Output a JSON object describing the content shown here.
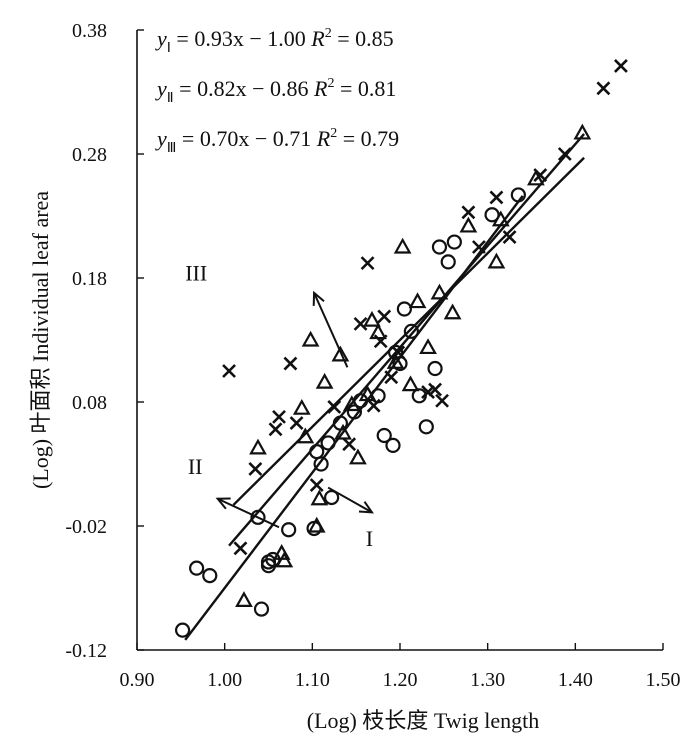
{
  "chart_data": {
    "type": "scatter",
    "title": "",
    "xlabel": "(Log) 枝长度 Twig length",
    "ylabel": "(Log) 叶面积 Individual leaf area",
    "xlim": [
      0.9,
      1.5
    ],
    "ylim": [
      -0.12,
      0.38
    ],
    "x_ticks": [
      "0.90",
      "1.00",
      "1.10",
      "1.20",
      "1.30",
      "1.40",
      "1.50"
    ],
    "y_ticks": [
      "-0.12",
      "-0.02",
      "0.08",
      "0.18",
      "0.28",
      "0.38"
    ],
    "grid": false,
    "equations": [
      {
        "y": "y",
        "sub": "Ⅰ",
        "rhs": " = 0.93x − 1.00",
        "r": "R",
        "sup": "2",
        "rval": " = 0.85"
      },
      {
        "y": "y",
        "sub": "Ⅱ",
        "rhs": " = 0.82x − 0.86",
        "r": "R",
        "sup": "2",
        "rval": " = 0.81"
      },
      {
        "y": "y",
        "sub": "Ⅲ",
        "rhs": " = 0.70x − 0.71",
        "r": "R",
        "sup": "2",
        "rval": " = 0.79"
      }
    ],
    "series": [
      {
        "name": "I",
        "marker": "circle",
        "fit": {
          "slope": 0.93,
          "intercept": -1.0,
          "x_range": [
            0.955,
            1.34
          ]
        },
        "points": [
          [
            0.952,
            -0.104
          ],
          [
            0.968,
            -0.054
          ],
          [
            0.983,
            -0.06
          ],
          [
            1.042,
            -0.087
          ],
          [
            1.05,
            -0.049
          ],
          [
            1.05,
            -0.052
          ],
          [
            1.055,
            -0.047
          ],
          [
            1.038,
            -0.013
          ],
          [
            1.073,
            -0.023
          ],
          [
            1.102,
            -0.022
          ],
          [
            1.105,
            0.04
          ],
          [
            1.11,
            0.03
          ],
          [
            1.118,
            0.047
          ],
          [
            1.122,
            0.003
          ],
          [
            1.132,
            0.063
          ],
          [
            1.148,
            0.072
          ],
          [
            1.155,
            0.081
          ],
          [
            1.175,
            0.085
          ],
          [
            1.182,
            0.053
          ],
          [
            1.192,
            0.045
          ],
          [
            1.195,
            0.12
          ],
          [
            1.2,
            0.111
          ],
          [
            1.205,
            0.155
          ],
          [
            1.213,
            0.137
          ],
          [
            1.222,
            0.085
          ],
          [
            1.23,
            0.06
          ],
          [
            1.24,
            0.107
          ],
          [
            1.245,
            0.205
          ],
          [
            1.255,
            0.193
          ],
          [
            1.262,
            0.209
          ],
          [
            1.305,
            0.231
          ],
          [
            1.335,
            0.247
          ]
        ]
      },
      {
        "name": "II",
        "marker": "triangle",
        "fit": {
          "slope": 0.82,
          "intercept": -0.86,
          "x_range": [
            1.005,
            1.41
          ]
        },
        "points": [
          [
            1.022,
            -0.08
          ],
          [
            1.068,
            -0.048
          ],
          [
            1.065,
            -0.042
          ],
          [
            1.105,
            -0.02
          ],
          [
            1.108,
            0.002
          ],
          [
            1.038,
            0.043
          ],
          [
            1.088,
            0.075
          ],
          [
            1.092,
            0.052
          ],
          [
            1.098,
            0.13
          ],
          [
            1.114,
            0.096
          ],
          [
            1.132,
            0.118
          ],
          [
            1.135,
            0.055
          ],
          [
            1.145,
            0.078
          ],
          [
            1.152,
            0.035
          ],
          [
            1.163,
            0.086
          ],
          [
            1.168,
            0.146
          ],
          [
            1.175,
            0.136
          ],
          [
            1.195,
            0.112
          ],
          [
            1.203,
            0.205
          ],
          [
            1.212,
            0.094
          ],
          [
            1.22,
            0.161
          ],
          [
            1.232,
            0.124
          ],
          [
            1.245,
            0.168
          ],
          [
            1.26,
            0.152
          ],
          [
            1.278,
            0.222
          ],
          [
            1.31,
            0.193
          ],
          [
            1.315,
            0.227
          ],
          [
            1.355,
            0.26
          ],
          [
            1.408,
            0.297
          ]
        ]
      },
      {
        "name": "III",
        "marker": "cross",
        "fit": {
          "slope": 0.7,
          "intercept": -0.71,
          "x_range": [
            1.01,
            1.41
          ]
        },
        "points": [
          [
            1.018,
            -0.038
          ],
          [
            1.035,
            0.026
          ],
          [
            1.005,
            0.105
          ],
          [
            1.058,
            0.058
          ],
          [
            1.062,
            0.068
          ],
          [
            1.075,
            0.111
          ],
          [
            1.082,
            0.063
          ],
          [
            1.105,
            0.013
          ],
          [
            1.125,
            0.076
          ],
          [
            1.142,
            0.046
          ],
          [
            1.155,
            0.143
          ],
          [
            1.163,
            0.192
          ],
          [
            1.17,
            0.077
          ],
          [
            1.178,
            0.129
          ],
          [
            1.182,
            0.149
          ],
          [
            1.19,
            0.1
          ],
          [
            1.198,
            0.12
          ],
          [
            1.232,
            0.088
          ],
          [
            1.24,
            0.09
          ],
          [
            1.248,
            0.081
          ],
          [
            1.278,
            0.233
          ],
          [
            1.29,
            0.205
          ],
          [
            1.31,
            0.245
          ],
          [
            1.325,
            0.213
          ],
          [
            1.36,
            0.263
          ],
          [
            1.388,
            0.28
          ],
          [
            1.432,
            0.333
          ],
          [
            1.452,
            0.351
          ]
        ]
      }
    ],
    "annotations": [
      {
        "label": "I",
        "text_at": [
          1.161,
          -0.036
        ],
        "arrow_from": [
          1.118,
          0.011
        ],
        "arrow_to": [
          1.168,
          -0.009
        ]
      },
      {
        "label": "II",
        "text_at": [
          0.958,
          0.022
        ],
        "arrow_from": [
          1.062,
          -0.021
        ],
        "arrow_to": [
          0.992,
          0.002
        ]
      },
      {
        "label": "III",
        "text_at": [
          0.955,
          0.178
        ],
        "arrow_from": [
          1.14,
          0.108
        ],
        "arrow_to": [
          1.102,
          0.168
        ]
      }
    ]
  }
}
